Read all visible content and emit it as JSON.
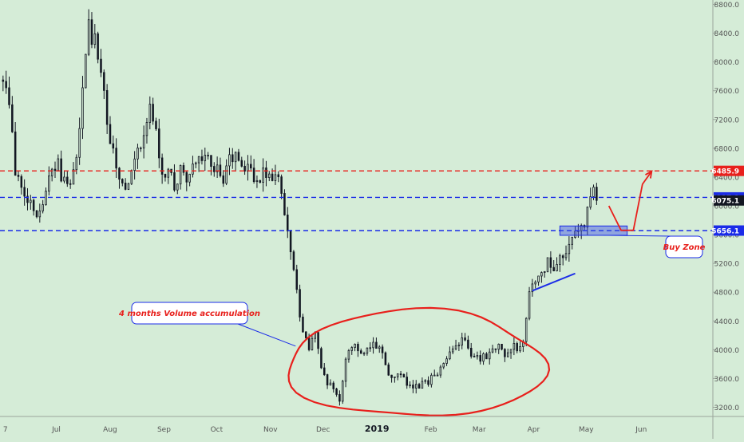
{
  "chart_data": {
    "type": "candlestick",
    "ylim": [
      3050,
      8850
    ],
    "x_ticks": [
      {
        "label": "7",
        "time": 0
      },
      {
        "label": "Jul",
        "time": 8.7
      },
      {
        "label": "Aug",
        "time": 17.5
      },
      {
        "label": "Sep",
        "time": 26.3
      },
      {
        "label": "Oct",
        "time": 34.9
      },
      {
        "label": "Nov",
        "time": 43.7
      },
      {
        "label": "Dec",
        "time": 52.3
      },
      {
        "label": "2019",
        "time": 61.1
      },
      {
        "label": "Feb",
        "time": 69.9
      },
      {
        "label": "Mar",
        "time": 77.8
      },
      {
        "label": "Apr",
        "time": 86.7
      },
      {
        "label": "May",
        "time": 95.3
      },
      {
        "label": "Jun",
        "time": 104.3
      }
    ],
    "y_ticks": [
      "8800.0",
      "8400.0",
      "8000.0",
      "7600.0",
      "7200.0",
      "6800.0",
      "6400.0",
      "6000.0",
      "5600.0",
      "5200.0",
      "4800.0",
      "4400.0",
      "4000.0",
      "3600.0",
      "3200.0"
    ],
    "y_tick_values": [
      8800,
      8400,
      8000,
      7600,
      7200,
      6800,
      6400,
      6000,
      5600,
      5200,
      4800,
      4400,
      4000,
      3600,
      3200
    ],
    "x_domain": [
      -0.5,
      116
    ],
    "level_lines": [
      {
        "value": 6485.9,
        "label": "6485.9",
        "color": "#e8201c"
      },
      {
        "value": 6117.1,
        "label": "6117.1",
        "color": "#1a2be8"
      },
      {
        "value": 6075.1,
        "label": "6075.1",
        "color": "#131722"
      },
      {
        "value": 5656.1,
        "label": "5656.1",
        "color": "#1a2be8"
      }
    ],
    "price_points": [
      [
        0,
        7750
      ],
      [
        1,
        7500
      ],
      [
        2,
        6500
      ],
      [
        3,
        6300
      ],
      [
        4,
        6100
      ],
      [
        5,
        6000
      ],
      [
        6,
        5850
      ],
      [
        7,
        6200
      ],
      [
        8,
        6500
      ],
      [
        9,
        6600
      ],
      [
        10,
        6300
      ],
      [
        11,
        6200
      ],
      [
        12,
        6700
      ],
      [
        13,
        7700
      ],
      [
        14,
        8450
      ],
      [
        15,
        8300
      ],
      [
        16,
        7800
      ],
      [
        17,
        7200
      ],
      [
        18,
        6700
      ],
      [
        19,
        6300
      ],
      [
        20,
        6200
      ],
      [
        21,
        6400
      ],
      [
        22,
        6700
      ],
      [
        23,
        7000
      ],
      [
        24,
        7300
      ],
      [
        25,
        7000
      ],
      [
        26,
        6500
      ],
      [
        27,
        6400
      ],
      [
        28,
        6300
      ],
      [
        29,
        6500
      ],
      [
        30,
        6400
      ],
      [
        31,
        6500
      ],
      [
        32,
        6600
      ],
      [
        33,
        6700
      ],
      [
        34,
        6600
      ],
      [
        35,
        6500
      ],
      [
        36,
        6300
      ],
      [
        37,
        6700
      ],
      [
        38,
        6650
      ],
      [
        39,
        6550
      ],
      [
        40,
        6500
      ],
      [
        41,
        6450
      ],
      [
        42,
        6400
      ],
      [
        43,
        6450
      ],
      [
        44,
        6400
      ],
      [
        45,
        6400
      ],
      [
        46,
        5800
      ],
      [
        47,
        5400
      ],
      [
        48,
        4800
      ],
      [
        49,
        4200
      ],
      [
        50,
        4000
      ],
      [
        51,
        4300
      ],
      [
        52,
        3800
      ],
      [
        53,
        3500
      ],
      [
        54,
        3450
      ],
      [
        55,
        3300
      ],
      [
        56,
        3900
      ],
      [
        57,
        4100
      ],
      [
        58,
        4000
      ],
      [
        59,
        3950
      ],
      [
        60,
        4100
      ],
      [
        61,
        4050
      ],
      [
        62,
        3900
      ],
      [
        63,
        3700
      ],
      [
        64,
        3600
      ],
      [
        65,
        3600
      ],
      [
        66,
        3550
      ],
      [
        67,
        3500
      ],
      [
        68,
        3450
      ],
      [
        69,
        3550
      ],
      [
        70,
        3600
      ],
      [
        71,
        3700
      ],
      [
        72,
        3800
      ],
      [
        73,
        3950
      ],
      [
        74,
        4100
      ],
      [
        75,
        4150
      ],
      [
        76,
        4050
      ],
      [
        77,
        3900
      ],
      [
        78,
        3900
      ],
      [
        79,
        3900
      ],
      [
        80,
        4000
      ],
      [
        81,
        4050
      ],
      [
        82,
        3950
      ],
      [
        83,
        4000
      ],
      [
        84,
        4050
      ],
      [
        85,
        4150
      ],
      [
        86,
        4800
      ],
      [
        87,
        5000
      ],
      [
        88,
        5100
      ],
      [
        89,
        5200
      ],
      [
        90,
        5100
      ],
      [
        91,
        5300
      ],
      [
        92,
        5300
      ],
      [
        93,
        5500
      ],
      [
        94,
        5650
      ],
      [
        95,
        5800
      ],
      [
        96,
        6100
      ],
      [
        97,
        6200
      ]
    ],
    "projection_path_values": [
      [
        99,
        6000
      ],
      [
        101,
        5660
      ],
      [
        103,
        5660
      ],
      [
        104.5,
        6300
      ],
      [
        106,
        6480
      ]
    ],
    "trendline_values": [
      [
        86.5,
        4820
      ],
      [
        93.5,
        5060
      ]
    ],
    "buy_zone": {
      "x0": 91,
      "x1": 102,
      "y0": 5590,
      "y1": 5720
    },
    "accumulation_range": {
      "x0": 46.5,
      "x1": 88.5,
      "y0": 3060,
      "y1": 4540
    },
    "annotations": {
      "accumulation": "4 months Volume accumulation",
      "buy_zone": "Buy Zone"
    },
    "colors": {
      "background": "#d5ecd7",
      "candles": "#131722",
      "annotation_red": "#e8201c",
      "annotation_blue": "#1a2be8",
      "axis_text": "#555555"
    }
  }
}
